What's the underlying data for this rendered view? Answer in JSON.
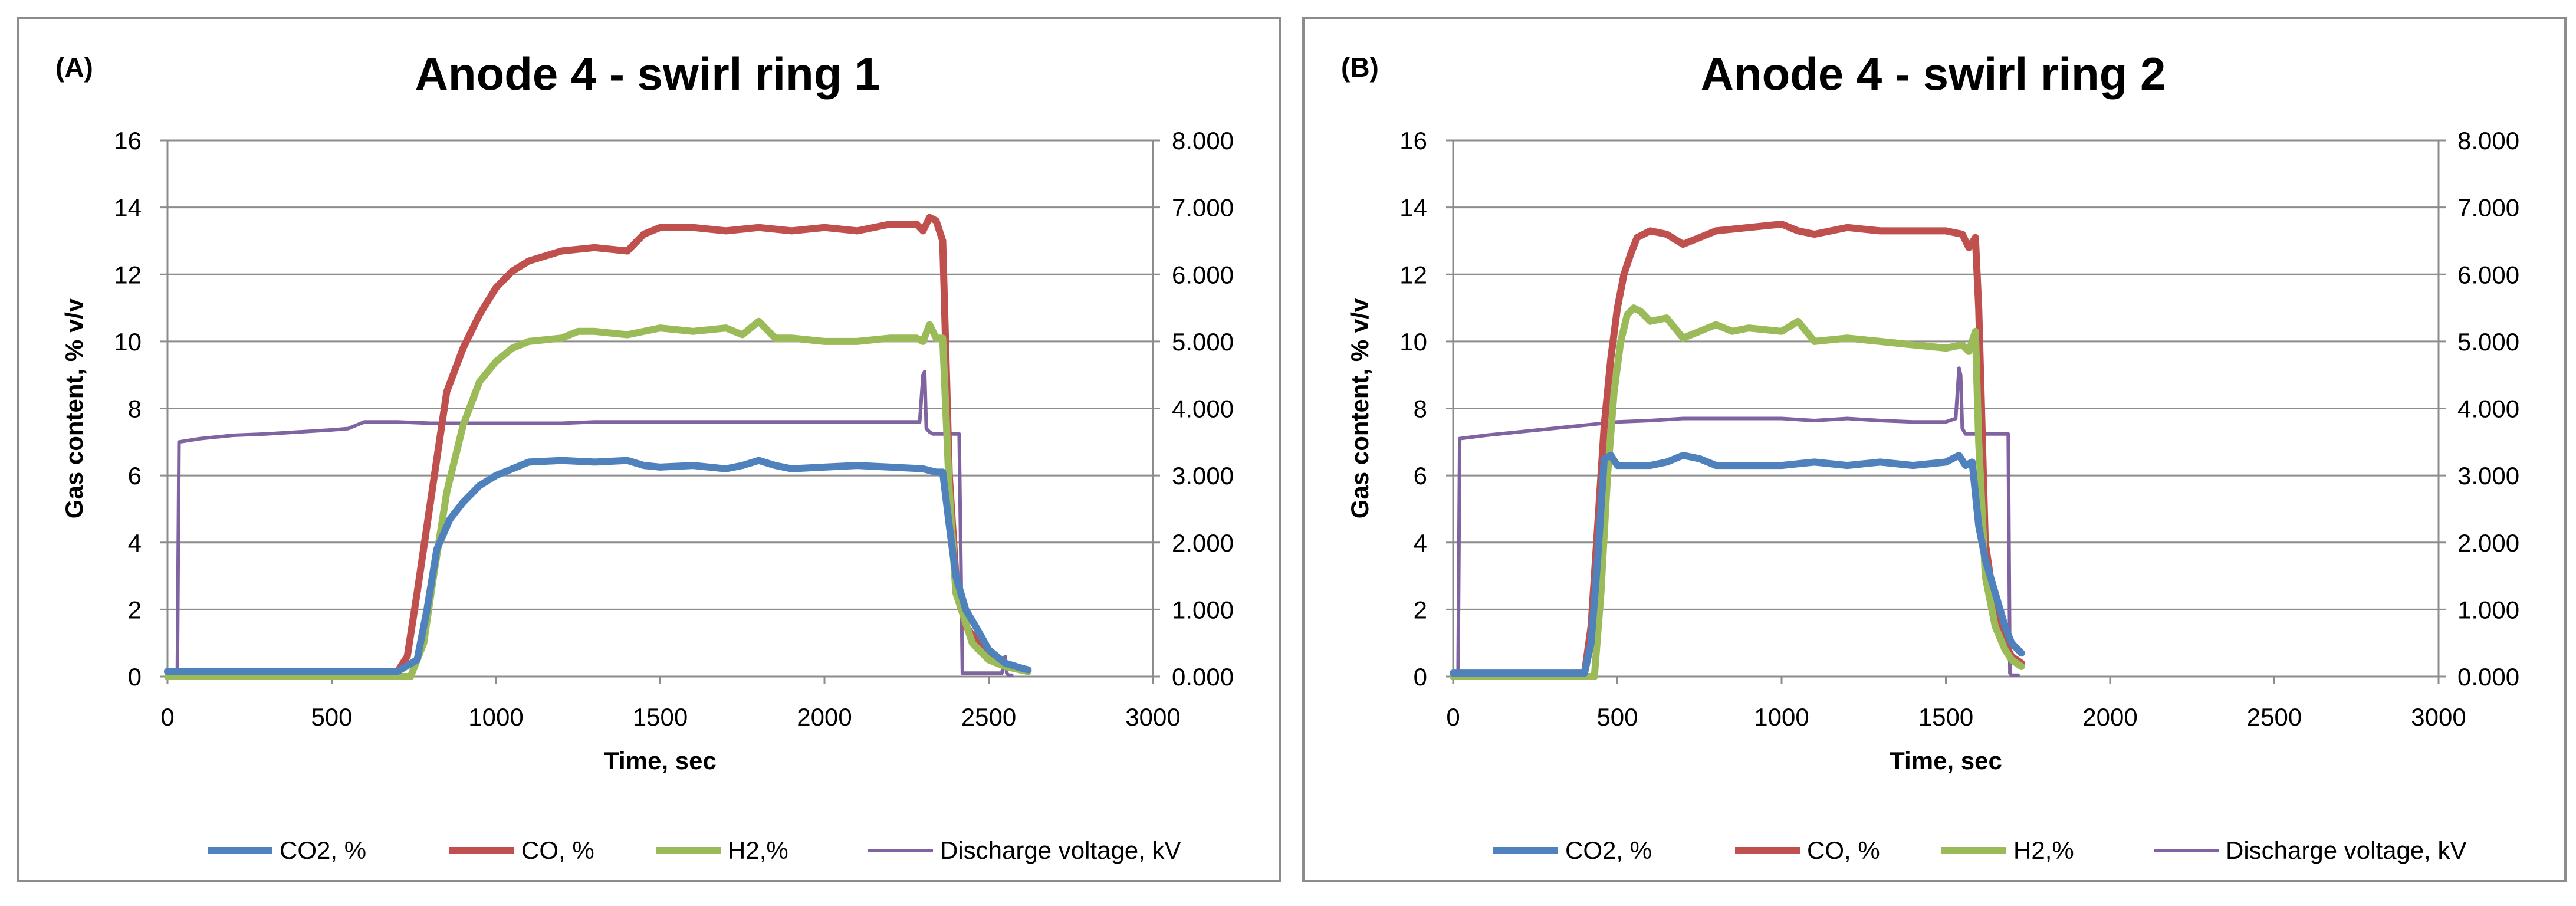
{
  "chart_data": [
    {
      "type": "line",
      "panel_label": "(A)",
      "title": "Anode 4 -  swirl ring 1",
      "xlabel": "Time, sec",
      "ylabel": "Gas content, % v/v",
      "y2label": "",
      "xlim": [
        0,
        3000
      ],
      "ylim": [
        0,
        16
      ],
      "y2lim": [
        0,
        8
      ],
      "x_ticks": [
        "0",
        "500",
        "1000",
        "1500",
        "2000",
        "2500",
        "3000"
      ],
      "y_ticks": [
        "0",
        "2",
        "4",
        "6",
        "8",
        "10",
        "12",
        "14",
        "16"
      ],
      "y2_ticks": [
        "0.000",
        "1.000",
        "2.000",
        "3.000",
        "4.000",
        "5.000",
        "6.000",
        "7.000",
        "8.000"
      ],
      "grid": true,
      "legend_position": "bottom",
      "series": [
        {
          "name": "CO2, %",
          "color": "#4f81bd",
          "axis": "left",
          "x": [
            0,
            700,
            760,
            790,
            820,
            860,
            900,
            950,
            1000,
            1050,
            1100,
            1200,
            1300,
            1400,
            1450,
            1500,
            1600,
            1700,
            1750,
            1800,
            1850,
            1900,
            2000,
            2100,
            2200,
            2300,
            2340,
            2360,
            2380,
            2400,
            2430,
            2460,
            2500,
            2550,
            2600,
            2620
          ],
          "y": [
            0.15,
            0.15,
            0.5,
            2.0,
            3.8,
            4.7,
            5.2,
            5.7,
            6.0,
            6.2,
            6.4,
            6.45,
            6.4,
            6.45,
            6.3,
            6.25,
            6.3,
            6.2,
            6.3,
            6.45,
            6.3,
            6.2,
            6.25,
            6.3,
            6.25,
            6.2,
            6.1,
            6.1,
            4.5,
            3.0,
            2.0,
            1.5,
            0.8,
            0.4,
            0.25,
            0.2
          ]
        },
        {
          "name": "CO, %",
          "color": "#c0504d",
          "axis": "left",
          "x": [
            0,
            700,
            730,
            760,
            790,
            820,
            850,
            900,
            950,
            1000,
            1050,
            1100,
            1200,
            1300,
            1400,
            1450,
            1500,
            1600,
            1700,
            1800,
            1900,
            2000,
            2100,
            2200,
            2280,
            2300,
            2320,
            2340,
            2360,
            2380,
            2400,
            2430,
            2500,
            2550,
            2600
          ],
          "y": [
            0.15,
            0.15,
            0.6,
            2.5,
            4.5,
            6.5,
            8.5,
            9.8,
            10.8,
            11.6,
            12.1,
            12.4,
            12.7,
            12.8,
            12.7,
            13.2,
            13.4,
            13.4,
            13.3,
            13.4,
            13.3,
            13.4,
            13.3,
            13.5,
            13.5,
            13.3,
            13.7,
            13.6,
            13.0,
            6.0,
            3.0,
            1.5,
            0.6,
            0.3,
            0.2
          ]
        },
        {
          "name": "H2,%",
          "color": "#9bbb59",
          "axis": "left",
          "x": [
            0,
            740,
            780,
            810,
            850,
            900,
            950,
            1000,
            1050,
            1100,
            1200,
            1250,
            1300,
            1400,
            1500,
            1600,
            1700,
            1750,
            1800,
            1850,
            1900,
            2000,
            2100,
            2200,
            2280,
            2300,
            2320,
            2340,
            2360,
            2380,
            2400,
            2450,
            2500,
            2550,
            2620
          ],
          "y": [
            0.0,
            0.0,
            1.0,
            3.0,
            5.5,
            7.5,
            8.8,
            9.4,
            9.8,
            10.0,
            10.1,
            10.3,
            10.3,
            10.2,
            10.4,
            10.3,
            10.4,
            10.2,
            10.6,
            10.1,
            10.1,
            10.0,
            10.0,
            10.1,
            10.1,
            10.0,
            10.5,
            10.1,
            10.1,
            5.5,
            2.5,
            1.0,
            0.5,
            0.3,
            0.15
          ]
        },
        {
          "name": "Discharge voltage, kV",
          "color": "#8064a2",
          "axis": "right",
          "thin": true,
          "x": [
            0,
            30,
            35,
            100,
            200,
            300,
            400,
            500,
            550,
            600,
            700,
            800,
            1000,
            1200,
            1300,
            1400,
            1600,
            1800,
            2000,
            2200,
            2290,
            2300,
            2305,
            2310,
            2320,
            2330,
            2380,
            2400,
            2410,
            2420,
            2430,
            2540,
            2550,
            2555,
            2560,
            2570
          ],
          "y": [
            0.05,
            0.05,
            3.5,
            3.55,
            3.6,
            3.62,
            3.65,
            3.68,
            3.7,
            3.8,
            3.8,
            3.78,
            3.78,
            3.78,
            3.8,
            3.8,
            3.8,
            3.8,
            3.8,
            3.8,
            3.8,
            4.5,
            4.55,
            3.7,
            3.65,
            3.62,
            3.62,
            3.62,
            3.62,
            0.05,
            0.05,
            0.05,
            0.3,
            0.05,
            0.02,
            0.02
          ]
        }
      ]
    },
    {
      "type": "line",
      "panel_label": "(B)",
      "title": "Anode 4 -  swirl ring 2",
      "xlabel": "Time, sec",
      "ylabel": "Gas content, % v/v",
      "y2label": "",
      "xlim": [
        0,
        3000
      ],
      "ylim": [
        0,
        16
      ],
      "y2lim": [
        0,
        8
      ],
      "x_ticks": [
        "0",
        "500",
        "1000",
        "1500",
        "2000",
        "2500",
        "3000"
      ],
      "y_ticks": [
        "0",
        "2",
        "4",
        "6",
        "8",
        "10",
        "12",
        "14",
        "16"
      ],
      "y2_ticks": [
        "0.000",
        "1.000",
        "2.000",
        "3.000",
        "4.000",
        "5.000",
        "6.000",
        "7.000",
        "8.000"
      ],
      "grid": true,
      "legend_position": "bottom",
      "series": [
        {
          "name": "CO2, %",
          "color": "#4f81bd",
          "axis": "left",
          "x": [
            0,
            400,
            420,
            440,
            460,
            480,
            500,
            550,
            600,
            650,
            700,
            750,
            800,
            900,
            1000,
            1100,
            1200,
            1300,
            1400,
            1500,
            1540,
            1560,
            1580,
            1600,
            1620,
            1650,
            1680,
            1700,
            1720,
            1730
          ],
          "y": [
            0.1,
            0.1,
            1.0,
            3.5,
            6.5,
            6.6,
            6.3,
            6.3,
            6.3,
            6.4,
            6.6,
            6.5,
            6.3,
            6.3,
            6.3,
            6.4,
            6.3,
            6.4,
            6.3,
            6.4,
            6.6,
            6.3,
            6.4,
            4.5,
            3.5,
            2.5,
            1.5,
            1.0,
            0.8,
            0.7
          ]
        },
        {
          "name": "CO, %",
          "color": "#c0504d",
          "axis": "left",
          "x": [
            0,
            400,
            420,
            440,
            460,
            480,
            500,
            520,
            540,
            560,
            600,
            650,
            700,
            750,
            800,
            900,
            1000,
            1050,
            1100,
            1200,
            1300,
            1400,
            1500,
            1550,
            1570,
            1590,
            1600,
            1620,
            1650,
            1680,
            1700,
            1730
          ],
          "y": [
            0.1,
            0.1,
            1.5,
            4.5,
            7.5,
            9.5,
            11.0,
            12.0,
            12.6,
            13.1,
            13.3,
            13.2,
            12.9,
            13.1,
            13.3,
            13.4,
            13.5,
            13.3,
            13.2,
            13.4,
            13.3,
            13.3,
            13.3,
            13.2,
            12.8,
            13.1,
            11.0,
            4.0,
            2.0,
            1.0,
            0.6,
            0.4
          ]
        },
        {
          "name": "H2,%",
          "color": "#9bbb59",
          "axis": "left",
          "x": [
            0,
            430,
            450,
            470,
            490,
            510,
            530,
            550,
            570,
            600,
            650,
            700,
            750,
            800,
            850,
            900,
            1000,
            1050,
            1100,
            1200,
            1300,
            1400,
            1500,
            1550,
            1570,
            1590,
            1600,
            1620,
            1650,
            1680,
            1700,
            1730
          ],
          "y": [
            0.0,
            0.0,
            2.5,
            6.0,
            8.5,
            10.0,
            10.8,
            11.0,
            10.9,
            10.6,
            10.7,
            10.1,
            10.3,
            10.5,
            10.3,
            10.4,
            10.3,
            10.6,
            10.0,
            10.1,
            10.0,
            9.9,
            9.8,
            9.9,
            9.7,
            10.3,
            7.0,
            3.0,
            1.5,
            0.8,
            0.5,
            0.3
          ]
        },
        {
          "name": "Discharge voltage, kV",
          "color": "#8064a2",
          "axis": "right",
          "thin": true,
          "x": [
            0,
            15,
            20,
            100,
            200,
            300,
            400,
            500,
            600,
            700,
            800,
            900,
            1000,
            1100,
            1200,
            1300,
            1400,
            1500,
            1530,
            1540,
            1545,
            1550,
            1560,
            1600,
            1650,
            1690,
            1695,
            1700,
            1720
          ],
          "y": [
            0.05,
            0.05,
            3.55,
            3.6,
            3.65,
            3.7,
            3.75,
            3.8,
            3.82,
            3.85,
            3.85,
            3.85,
            3.85,
            3.82,
            3.85,
            3.82,
            3.8,
            3.8,
            3.85,
            4.6,
            4.5,
            3.7,
            3.62,
            3.62,
            3.62,
            3.62,
            0.05,
            0.02,
            0.02
          ]
        }
      ]
    }
  ]
}
